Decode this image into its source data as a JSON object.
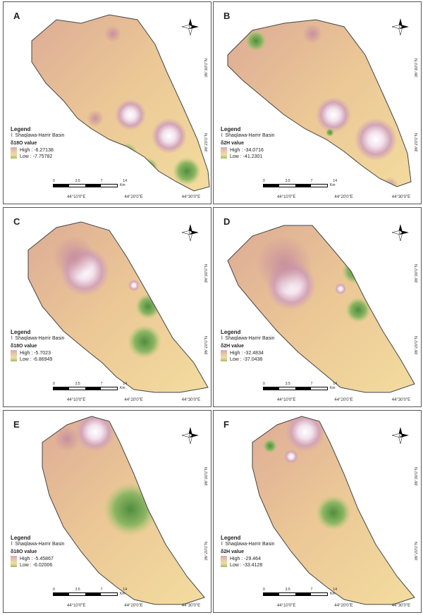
{
  "basin_label": "Shaqlawa-Harrir Basin",
  "legend_title": "Legend",
  "compass": {
    "n": "N",
    "s": "S",
    "e": "E",
    "w": "W"
  },
  "scale_ticks": [
    "0",
    "3.5",
    "7",
    "14"
  ],
  "scale_unit": "Km",
  "lon_labels": [
    "44°10'0\"E",
    "44°20'0\"E",
    "44°30'0\"E"
  ],
  "lat_labels": [
    "36°30'0\"N",
    "36°20'0\"N"
  ],
  "panels": [
    {
      "letter": "A",
      "variable": "δ18O value",
      "high": "High : -6.27138",
      "low": "Low : -7.75782"
    },
    {
      "letter": "B",
      "variable": "δ2H value",
      "high": "High : -34.0716",
      "low": "Low : -41.2301"
    },
    {
      "letter": "C",
      "variable": "δ18O value",
      "high": "High : -5.7023",
      "low": "Low : -6.86949"
    },
    {
      "letter": "D",
      "variable": "δ2H value",
      "high": "High : -32.4834",
      "low": "Low : -37.0438"
    },
    {
      "letter": "E",
      "variable": "δ18O value",
      "high": "High : -5.45867",
      "low": "Low : -6.02006"
    },
    {
      "letter": "F",
      "variable": "δ2H value",
      "high": "High : -29.464",
      "low": "Low : -33.4128"
    }
  ]
}
